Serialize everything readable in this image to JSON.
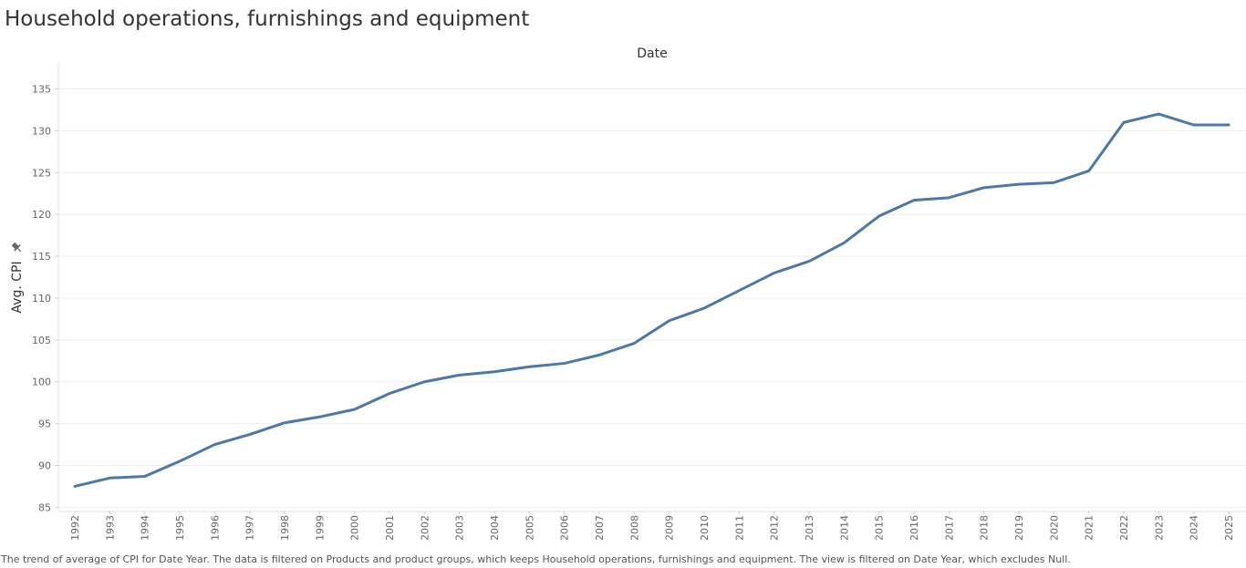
{
  "title": "Household operations, furnishings and equipment",
  "caption": "The trend of average of CPI for Date Year. The data is filtered on Products and product groups, which keeps Household operations, furnishings and equipment. The view is filtered on Date Year, which excludes Null.",
  "chart_data": {
    "type": "line",
    "title": "Household operations, furnishings and equipment",
    "xlabel": "Date",
    "ylabel": "Avg. CPI",
    "ylabel_icon": "pin-icon",
    "ylim": [
      84.5,
      138
    ],
    "yticks": [
      85,
      90,
      95,
      100,
      105,
      110,
      115,
      120,
      125,
      130,
      135
    ],
    "grid": true,
    "legend": "none",
    "line_color": "#4e79a7",
    "x": [
      "1992",
      "1993",
      "1994",
      "1995",
      "1996",
      "1997",
      "1998",
      "1999",
      "2000",
      "2001",
      "2002",
      "2003",
      "2004",
      "2005",
      "2006",
      "2007",
      "2008",
      "2009",
      "2010",
      "2011",
      "2012",
      "2013",
      "2014",
      "2015",
      "2016",
      "2017",
      "2018",
      "2019",
      "2020",
      "2021",
      "2022",
      "2023",
      "2024",
      "2025"
    ],
    "series": [
      {
        "values": [
          87.5,
          88.5,
          88.7,
          90.5,
          92.5,
          93.7,
          95.1,
          95.8,
          96.7,
          98.6,
          100.0,
          100.8,
          101.2,
          101.8,
          102.2,
          103.2,
          104.6,
          107.3,
          108.8,
          110.9,
          113.0,
          114.4,
          116.6,
          119.8,
          121.7,
          122.0,
          123.2,
          123.6,
          123.8,
          125.2,
          131.0,
          132.0,
          130.7,
          130.7
        ]
      }
    ]
  }
}
